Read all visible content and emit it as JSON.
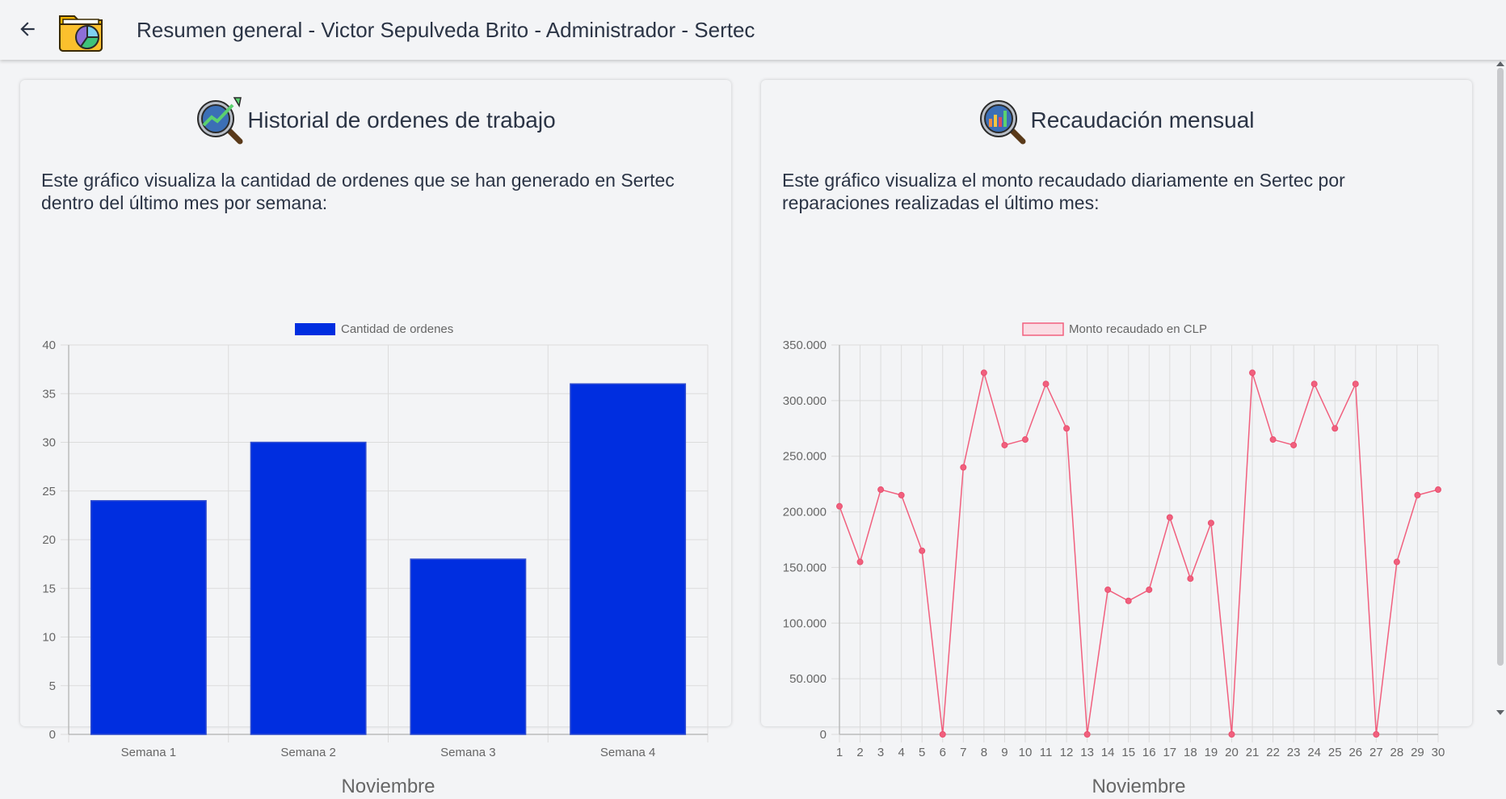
{
  "header": {
    "title": "Resumen general - Victor Sepulveda Brito - Administrador - Sertec",
    "back_icon": "arrow-left-icon",
    "logo_icon": "folder-pie-chart-icon"
  },
  "cards": [
    {
      "title": "Historial de ordenes de trabajo",
      "icon": "magnifier-trend-icon",
      "description": "Este gráfico visualiza la cantidad de ordenes que se han generado en Sertec dentro del último mes por semana:"
    },
    {
      "title": "Recaudación mensual",
      "icon": "magnifier-bars-icon",
      "description": "Este gráfico visualiza el monto recaudado diariamente en Sertec por reparaciones realizadas el último mes:"
    }
  ],
  "colors": {
    "bar_fill": "#002ee0",
    "line": "#f1607e",
    "text": "#2b3445",
    "grid": "#dcdcdc"
  },
  "chart_data": [
    {
      "type": "bar",
      "legend": "Cantidad de ordenes",
      "categories": [
        "Semana 1",
        "Semana 2",
        "Semana 3",
        "Semana 4"
      ],
      "values": [
        24,
        30,
        18,
        36
      ],
      "ylim": [
        0,
        40
      ],
      "yticks": [
        "0",
        "5",
        "10",
        "15",
        "20",
        "25",
        "30",
        "35",
        "40"
      ],
      "xlabel": "Noviembre",
      "ylabel": "",
      "grid": true,
      "legend_position": "top"
    },
    {
      "type": "line",
      "legend": "Monto recaudado en CLP",
      "x": [
        "1",
        "2",
        "3",
        "4",
        "5",
        "6",
        "7",
        "8",
        "9",
        "10",
        "11",
        "12",
        "13",
        "14",
        "15",
        "16",
        "17",
        "18",
        "19",
        "20",
        "21",
        "22",
        "23",
        "24",
        "25",
        "26",
        "27",
        "28",
        "29",
        "30"
      ],
      "values": [
        205000,
        155000,
        220000,
        215000,
        165000,
        0,
        240000,
        325000,
        260000,
        265000,
        315000,
        275000,
        0,
        130000,
        120000,
        130000,
        195000,
        140000,
        190000,
        0,
        325000,
        265000,
        260000,
        315000,
        275000,
        315000,
        0,
        155000,
        215000,
        220000
      ],
      "ylim": [
        0,
        350000
      ],
      "yticks": [
        "0",
        "50.000",
        "100.000",
        "150.000",
        "200.000",
        "250.000",
        "300.000",
        "350.000"
      ],
      "xlabel": "Noviembre",
      "ylabel": "",
      "grid": true,
      "legend_position": "top"
    }
  ]
}
